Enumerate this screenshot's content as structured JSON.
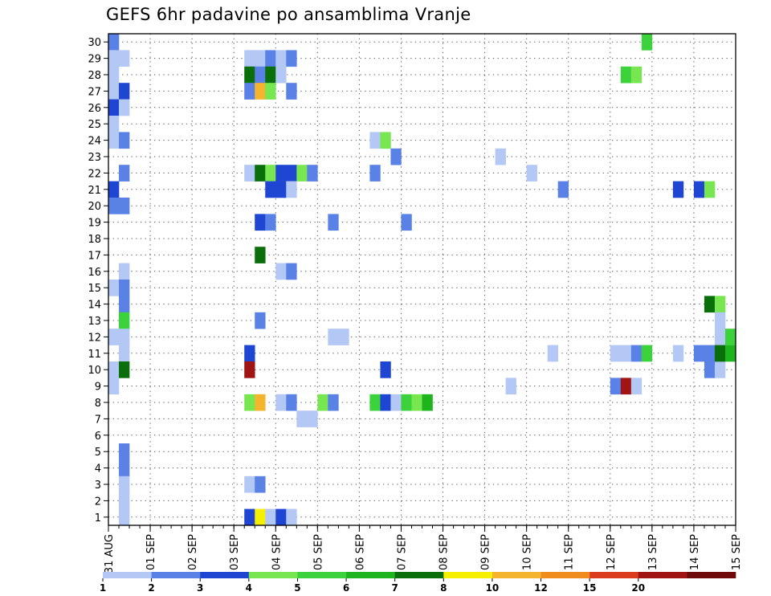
{
  "chart_data": {
    "type": "heatmap",
    "title": "GEFS 6hr padavine po ansamblima Vranje",
    "xlabel": "",
    "ylabel": "",
    "x_tick_labels": [
      "31 AUG",
      "01 SEP",
      "02 SEP",
      "03 SEP",
      "04 SEP",
      "05 SEP",
      "06 SEP",
      "07 SEP",
      "08 SEP",
      "09 SEP",
      "10 SEP",
      "11 SEP",
      "12 SEP",
      "13 SEP",
      "14 SEP",
      "15 SEP"
    ],
    "y_tick_labels": [
      "1",
      "2",
      "3",
      "4",
      "5",
      "6",
      "7",
      "8",
      "9",
      "10",
      "11",
      "12",
      "13",
      "14",
      "15",
      "16",
      "17",
      "18",
      "19",
      "20",
      "21",
      "22",
      "23",
      "24",
      "25",
      "26",
      "27",
      "28",
      "29",
      "30"
    ],
    "xlim_days": [
      0,
      15
    ],
    "ylim_members": [
      0.5,
      30.5
    ],
    "time_step_hours": 6,
    "grid": true,
    "legend": {
      "placement": "bottom",
      "boundaries": [
        "1",
        "2",
        "3",
        "4",
        "5",
        "6",
        "7",
        "8",
        "10",
        "12",
        "15",
        "20"
      ],
      "colors": [
        "#b4c8f5",
        "#5a82e6",
        "#1e46d2",
        "#78e650",
        "#3cd23c",
        "#1eb41e",
        "#0a6e0a",
        "#f5f000",
        "#f5b42d",
        "#f08c1e",
        "#dc3c1e",
        "#a01414",
        "#6e0a0a"
      ]
    },
    "cells": [
      {
        "t": 1,
        "m": 30,
        "c": 2
      },
      {
        "t": 1,
        "m": 29,
        "c": 1
      },
      {
        "t": 2,
        "m": 29,
        "c": 1
      },
      {
        "t": 1,
        "m": 28,
        "c": 1
      },
      {
        "t": 1,
        "m": 27,
        "c": 1
      },
      {
        "t": 2,
        "m": 27,
        "c": 3
      },
      {
        "t": 1,
        "m": 26,
        "c": 3
      },
      {
        "t": 2,
        "m": 26,
        "c": 1
      },
      {
        "t": 1,
        "m": 25,
        "c": 1
      },
      {
        "t": 1,
        "m": 24,
        "c": 1
      },
      {
        "t": 2,
        "m": 24,
        "c": 2
      },
      {
        "t": 2,
        "m": 22,
        "c": 2
      },
      {
        "t": 1,
        "m": 21,
        "c": 3
      },
      {
        "t": 1,
        "m": 20,
        "c": 2
      },
      {
        "t": 2,
        "m": 20,
        "c": 2
      },
      {
        "t": 2,
        "m": 16,
        "c": 1
      },
      {
        "t": 1,
        "m": 15,
        "c": 1
      },
      {
        "t": 2,
        "m": 15,
        "c": 2
      },
      {
        "t": 2,
        "m": 14,
        "c": 2
      },
      {
        "t": 2,
        "m": 13,
        "c": 5
      },
      {
        "t": 1,
        "m": 12,
        "c": 1
      },
      {
        "t": 2,
        "m": 12,
        "c": 1
      },
      {
        "t": 2,
        "m": 11,
        "c": 1
      },
      {
        "t": 1,
        "m": 10,
        "c": 1
      },
      {
        "t": 2,
        "m": 10,
        "c": 7
      },
      {
        "t": 1,
        "m": 9,
        "c": 1
      },
      {
        "t": 2,
        "m": 5,
        "c": 2
      },
      {
        "t": 2,
        "m": 4,
        "c": 2
      },
      {
        "t": 2,
        "m": 3,
        "c": 1
      },
      {
        "t": 2,
        "m": 2,
        "c": 1
      },
      {
        "t": 2,
        "m": 1,
        "c": 1
      },
      {
        "t": 14,
        "m": 29,
        "c": 1
      },
      {
        "t": 15,
        "m": 29,
        "c": 1
      },
      {
        "t": 16,
        "m": 29,
        "c": 2
      },
      {
        "t": 17,
        "m": 29,
        "c": 1
      },
      {
        "t": 18,
        "m": 29,
        "c": 2
      },
      {
        "t": 14,
        "m": 28,
        "c": 7
      },
      {
        "t": 15,
        "m": 28,
        "c": 2
      },
      {
        "t": 16,
        "m": 28,
        "c": 7
      },
      {
        "t": 17,
        "m": 28,
        "c": 1
      },
      {
        "t": 14,
        "m": 27,
        "c": 2
      },
      {
        "t": 15,
        "m": 27,
        "c": 9
      },
      {
        "t": 16,
        "m": 27,
        "c": 4
      },
      {
        "t": 18,
        "m": 27,
        "c": 2
      },
      {
        "t": 14,
        "m": 22,
        "c": 1
      },
      {
        "t": 15,
        "m": 22,
        "c": 7
      },
      {
        "t": 16,
        "m": 22,
        "c": 4
      },
      {
        "t": 17,
        "m": 22,
        "c": 3
      },
      {
        "t": 18,
        "m": 22,
        "c": 3
      },
      {
        "t": 19,
        "m": 22,
        "c": 4
      },
      {
        "t": 20,
        "m": 22,
        "c": 2
      },
      {
        "t": 16,
        "m": 21,
        "c": 3
      },
      {
        "t": 17,
        "m": 21,
        "c": 3
      },
      {
        "t": 18,
        "m": 21,
        "c": 1
      },
      {
        "t": 15,
        "m": 19,
        "c": 3
      },
      {
        "t": 16,
        "m": 19,
        "c": 2
      },
      {
        "t": 15,
        "m": 17,
        "c": 7
      },
      {
        "t": 17,
        "m": 16,
        "c": 1
      },
      {
        "t": 18,
        "m": 16,
        "c": 2
      },
      {
        "t": 15,
        "m": 13,
        "c": 2
      },
      {
        "t": 14,
        "m": 11,
        "c": 3
      },
      {
        "t": 14,
        "m": 10,
        "c": 12
      },
      {
        "t": 14,
        "m": 8,
        "c": 4
      },
      {
        "t": 15,
        "m": 8,
        "c": 9
      },
      {
        "t": 17,
        "m": 8,
        "c": 1
      },
      {
        "t": 18,
        "m": 8,
        "c": 2
      },
      {
        "t": 14,
        "m": 3,
        "c": 1
      },
      {
        "t": 15,
        "m": 3,
        "c": 2
      },
      {
        "t": 14,
        "m": 1,
        "c": 3
      },
      {
        "t": 15,
        "m": 1,
        "c": 8
      },
      {
        "t": 16,
        "m": 1,
        "c": 1
      },
      {
        "t": 17,
        "m": 1,
        "c": 3
      },
      {
        "t": 18,
        "m": 1,
        "c": 1
      },
      {
        "t": 19,
        "m": 7,
        "c": 1
      },
      {
        "t": 20,
        "m": 7,
        "c": 1
      },
      {
        "t": 21,
        "m": 8,
        "c": 4
      },
      {
        "t": 22,
        "m": 8,
        "c": 2
      },
      {
        "t": 22,
        "m": 19,
        "c": 2
      },
      {
        "t": 22,
        "m": 12,
        "c": 1
      },
      {
        "t": 23,
        "m": 12,
        "c": 1
      },
      {
        "t": 26,
        "m": 24,
        "c": 1
      },
      {
        "t": 27,
        "m": 24,
        "c": 4
      },
      {
        "t": 26,
        "m": 22,
        "c": 2
      },
      {
        "t": 28,
        "m": 23,
        "c": 2
      },
      {
        "t": 27,
        "m": 10,
        "c": 3
      },
      {
        "t": 26,
        "m": 8,
        "c": 5
      },
      {
        "t": 27,
        "m": 8,
        "c": 3
      },
      {
        "t": 28,
        "m": 8,
        "c": 1
      },
      {
        "t": 29,
        "m": 8,
        "c": 5
      },
      {
        "t": 30,
        "m": 8,
        "c": 4
      },
      {
        "t": 31,
        "m": 8,
        "c": 6
      },
      {
        "t": 29,
        "m": 19,
        "c": 2
      },
      {
        "t": 38,
        "m": 23,
        "c": 1
      },
      {
        "t": 39,
        "m": 9,
        "c": 1
      },
      {
        "t": 41,
        "m": 22,
        "c": 1
      },
      {
        "t": 43,
        "m": 11,
        "c": 1
      },
      {
        "t": 44,
        "m": 21,
        "c": 2
      },
      {
        "t": 49,
        "m": 11,
        "c": 1
      },
      {
        "t": 50,
        "m": 11,
        "c": 1
      },
      {
        "t": 51,
        "m": 11,
        "c": 2
      },
      {
        "t": 52,
        "m": 11,
        "c": 5
      },
      {
        "t": 49,
        "m": 9,
        "c": 2
      },
      {
        "t": 50,
        "m": 9,
        "c": 12
      },
      {
        "t": 51,
        "m": 9,
        "c": 1
      },
      {
        "t": 50,
        "m": 28,
        "c": 5
      },
      {
        "t": 51,
        "m": 28,
        "c": 4
      },
      {
        "t": 52,
        "m": 30,
        "c": 5
      },
      {
        "t": 55,
        "m": 11,
        "c": 1
      },
      {
        "t": 55,
        "m": 21,
        "c": 3
      },
      {
        "t": 57,
        "m": 21,
        "c": 3
      },
      {
        "t": 58,
        "m": 21,
        "c": 4
      },
      {
        "t": 57,
        "m": 11,
        "c": 2
      },
      {
        "t": 58,
        "m": 11,
        "c": 2
      },
      {
        "t": 58,
        "m": 10,
        "c": 2
      },
      {
        "t": 59,
        "m": 10,
        "c": 1
      },
      {
        "t": 58,
        "m": 14,
        "c": 7
      },
      {
        "t": 59,
        "m": 14,
        "c": 4
      },
      {
        "t": 59,
        "m": 13,
        "c": 1
      },
      {
        "t": 59,
        "m": 12,
        "c": 1
      },
      {
        "t": 59,
        "m": 11,
        "c": 7
      },
      {
        "t": 60,
        "m": 11,
        "c": 6
      },
      {
        "t": 60,
        "m": 12,
        "c": 5
      }
    ]
  }
}
